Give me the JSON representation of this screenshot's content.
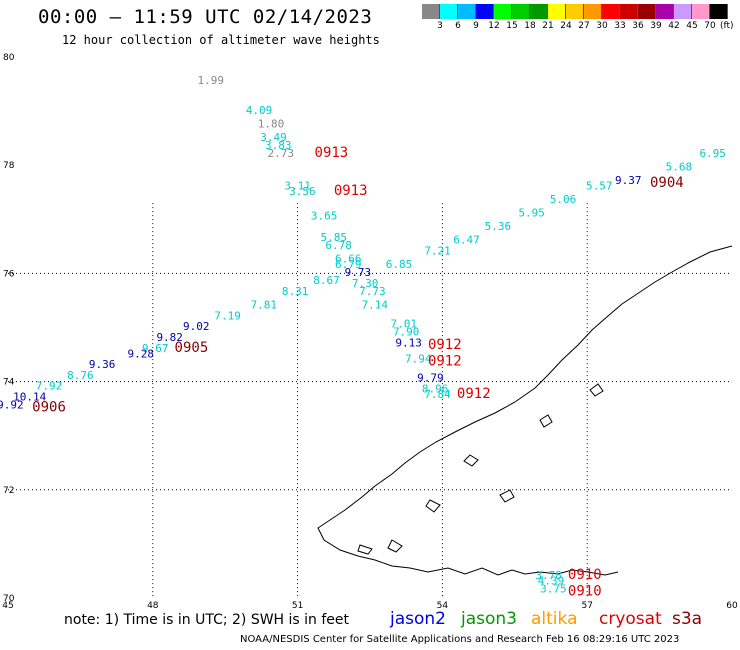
{
  "header": {
    "title": "00:00 – 11:59 UTC 02/14/2023",
    "subtitle": "12 hour collection of altimeter wave heights"
  },
  "color_scale": {
    "colors": [
      "#888888",
      "#00ffff",
      "#00bbff",
      "#0000ff",
      "#00ff00",
      "#00cc00",
      "#009900",
      "#ffff00",
      "#ffcc00",
      "#ff9900",
      "#ff0000",
      "#cc0000",
      "#990000",
      "#aa00aa",
      "#cc99ff",
      "#ff99cc",
      "#000000"
    ],
    "labels": [
      "3",
      "6",
      "9",
      "12",
      "15",
      "18",
      "21",
      "24",
      "27",
      "30",
      "33",
      "36",
      "39",
      "42",
      "45",
      "70"
    ],
    "unit": "(ft)"
  },
  "axes": {
    "lon_ticks": [
      "45",
      "48",
      "51",
      "54",
      "57",
      "60"
    ],
    "lat_ticks": [
      "80",
      "78",
      "76",
      "74",
      "72",
      "70"
    ],
    "lon_range": [
      45,
      60
    ],
    "lat_range": [
      70,
      80
    ]
  },
  "measurements": [
    {
      "value": "1.99",
      "color": "#888888",
      "lon": 49.2,
      "lat": 79.5
    },
    {
      "value": "4.09",
      "color": "#00cccc",
      "lon": 50.2,
      "lat": 78.95
    },
    {
      "value": "1.80",
      "color": "#888888",
      "lon": 50.45,
      "lat": 78.7
    },
    {
      "value": "3.49",
      "color": "#00cccc",
      "lon": 50.5,
      "lat": 78.45
    },
    {
      "value": "3.83",
      "color": "#00cccc",
      "lon": 50.6,
      "lat": 78.3
    },
    {
      "value": "2.73",
      "color": "#888888",
      "lon": 50.65,
      "lat": 78.15
    },
    {
      "value": "3.11",
      "color": "#00cccc",
      "lon": 51.0,
      "lat": 77.55
    },
    {
      "value": "3.56",
      "color": "#00cccc",
      "lon": 51.1,
      "lat": 77.45
    },
    {
      "value": "3.65",
      "color": "#00cccc",
      "lon": 51.55,
      "lat": 77.0
    },
    {
      "value": "5.85",
      "color": "#00cccc",
      "lon": 51.75,
      "lat": 76.6
    },
    {
      "value": "6.78",
      "color": "#00cccc",
      "lon": 51.85,
      "lat": 76.45
    },
    {
      "value": "6.66",
      "color": "#00cccc",
      "lon": 52.05,
      "lat": 76.2
    },
    {
      "value": "6.79",
      "color": "#00cccc",
      "lon": 52.05,
      "lat": 76.1
    },
    {
      "value": "9.73",
      "color": "#0000aa",
      "lon": 52.25,
      "lat": 75.95
    },
    {
      "value": "6.85",
      "color": "#00cccc",
      "lon": 53.1,
      "lat": 76.1
    },
    {
      "value": "8.67",
      "color": "#00cccc",
      "lon": 51.6,
      "lat": 75.8
    },
    {
      "value": "7.30",
      "color": "#00cccc",
      "lon": 52.4,
      "lat": 75.75
    },
    {
      "value": "8.31",
      "color": "#00cccc",
      "lon": 50.95,
      "lat": 75.6
    },
    {
      "value": "7.73",
      "color": "#00cccc",
      "lon": 52.55,
      "lat": 75.6
    },
    {
      "value": "7.14",
      "color": "#00cccc",
      "lon": 52.6,
      "lat": 75.35
    },
    {
      "value": "7.81",
      "color": "#00cccc",
      "lon": 50.3,
      "lat": 75.35
    },
    {
      "value": "7.19",
      "color": "#00cccc",
      "lon": 49.55,
      "lat": 75.15
    },
    {
      "value": "9.02",
      "color": "#0000aa",
      "lon": 48.9,
      "lat": 74.95
    },
    {
      "value": "9.82",
      "color": "#0000aa",
      "lon": 48.35,
      "lat": 74.75
    },
    {
      "value": "9.67",
      "color": "#00cccc",
      "lon": 48.05,
      "lat": 74.55
    },
    {
      "value": "9.28",
      "color": "#0000aa",
      "lon": 47.75,
      "lat": 74.45
    },
    {
      "value": "9.36",
      "color": "#0000aa",
      "lon": 46.95,
      "lat": 74.25
    },
    {
      "value": "8.76",
      "color": "#00cccc",
      "lon": 46.5,
      "lat": 74.05
    },
    {
      "value": "7.92",
      "color": "#00cccc",
      "lon": 45.85,
      "lat": 73.85
    },
    {
      "value": "10.14",
      "color": "#0000aa",
      "lon": 45.45,
      "lat": 73.65
    },
    {
      "value": "9.92",
      "color": "#0000aa",
      "lon": 45.05,
      "lat": 73.5
    },
    {
      "value": "7.01",
      "color": "#00cccc",
      "lon": 53.2,
      "lat": 75.0
    },
    {
      "value": "7.90",
      "color": "#00cccc",
      "lon": 53.25,
      "lat": 74.85
    },
    {
      "value": "9.13",
      "color": "#0000aa",
      "lon": 53.3,
      "lat": 74.65
    },
    {
      "value": "7.94",
      "color": "#00cccc",
      "lon": 53.5,
      "lat": 74.35
    },
    {
      "value": "9.79",
      "color": "#0000aa",
      "lon": 53.75,
      "lat": 74.0
    },
    {
      "value": "8.96",
      "color": "#00cccc",
      "lon": 53.85,
      "lat": 73.8
    },
    {
      "value": "7.84",
      "color": "#00cccc",
      "lon": 53.9,
      "lat": 73.7
    },
    {
      "value": "7.21",
      "color": "#00cccc",
      "lon": 53.9,
      "lat": 76.35
    },
    {
      "value": "6.47",
      "color": "#00cccc",
      "lon": 54.5,
      "lat": 76.55
    },
    {
      "value": "5.36",
      "color": "#00cccc",
      "lon": 55.15,
      "lat": 76.8
    },
    {
      "value": "5.95",
      "color": "#00cccc",
      "lon": 55.85,
      "lat": 77.05
    },
    {
      "value": "5.06",
      "color": "#00cccc",
      "lon": 56.5,
      "lat": 77.3
    },
    {
      "value": "5.57",
      "color": "#00cccc",
      "lon": 57.25,
      "lat": 77.55
    },
    {
      "value": "9.37",
      "color": "#0000aa",
      "lon": 57.85,
      "lat": 77.65
    },
    {
      "value": "5.68",
      "color": "#00cccc",
      "lon": 58.9,
      "lat": 77.9
    },
    {
      "value": "6.95",
      "color": "#00cccc",
      "lon": 59.6,
      "lat": 78.15
    },
    {
      "value": "3.78",
      "color": "#00cccc",
      "lon": 56.2,
      "lat": 70.35
    },
    {
      "value": "3.75",
      "color": "#00cccc",
      "lon": 56.3,
      "lat": 70.1
    },
    {
      "value": "4.39",
      "color": "#00cccc",
      "lon": 56.25,
      "lat": 70.25
    }
  ],
  "time_labels": [
    {
      "value": "0913",
      "color": "#dd0000",
      "lon": 51.7,
      "lat": 78.15
    },
    {
      "value": "0913",
      "color": "#dd0000",
      "lon": 52.1,
      "lat": 77.45
    },
    {
      "value": "0904",
      "color": "#880000",
      "lon": 58.65,
      "lat": 77.6
    },
    {
      "value": "0905",
      "color": "#880000",
      "lon": 48.8,
      "lat": 74.55
    },
    {
      "value": "0906",
      "color": "#880000",
      "lon": 45.85,
      "lat": 73.45
    },
    {
      "value": "0912",
      "color": "#dd0000",
      "lon": 54.05,
      "lat": 74.6
    },
    {
      "value": "0912",
      "color": "#dd0000",
      "lon": 54.05,
      "lat": 74.3
    },
    {
      "value": "0912",
      "color": "#dd0000",
      "lon": 54.65,
      "lat": 73.7
    },
    {
      "value": "0910",
      "color": "#dd0000",
      "lon": 56.95,
      "lat": 70.35
    },
    {
      "value": "0910",
      "color": "#dd0000",
      "lon": 56.95,
      "lat": 70.05
    }
  ],
  "footer": {
    "note": "note: 1) Time is in UTC; 2) SWH is in feet",
    "satellites": [
      {
        "name": "jason2",
        "color": "#0000dd"
      },
      {
        "name": "jason3",
        "color": "#009900"
      },
      {
        "name": "altika",
        "color": "#ff9900"
      },
      {
        "name": "cryosat",
        "color": "#dd0000"
      },
      {
        "name": "s3a",
        "color": "#880000"
      }
    ],
    "credits": "NOAA/NESDIS Center for Satellite Applications and Research    Feb 16 08:29:16 UTC 2023"
  }
}
